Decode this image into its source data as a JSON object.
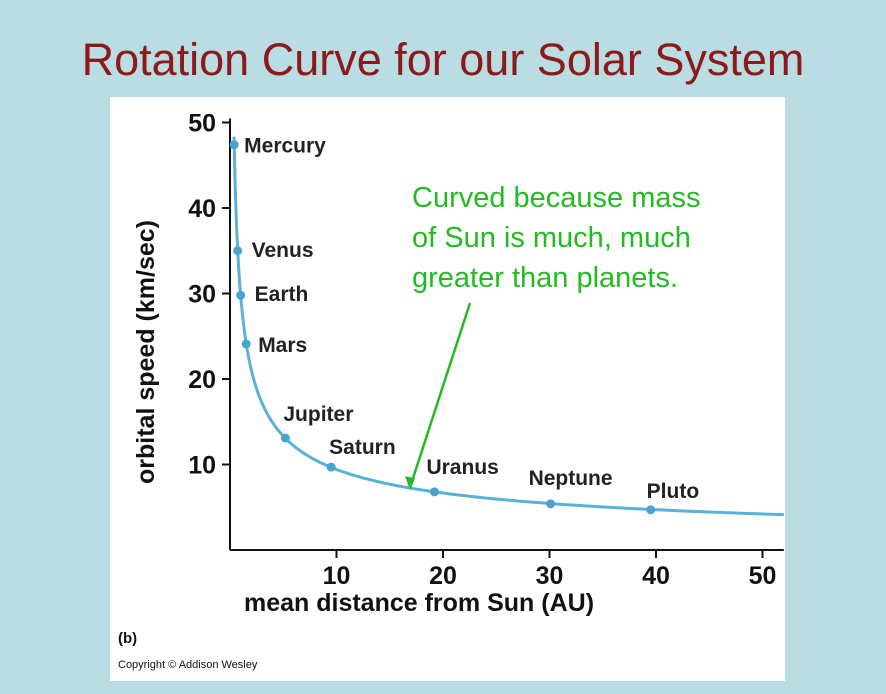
{
  "title": "Rotation Curve for our Solar System",
  "panel_label": "(b)",
  "copyright": "Copyright © Addison Wesley",
  "annotation": {
    "lines": [
      "Curved because mass",
      "of Sun is much, much",
      "greater than planets."
    ],
    "color": "#22bb22",
    "points_to_x": 17
  },
  "colors": {
    "background": "#b9dde2",
    "title": "#8b1a1a",
    "curve": "#5ab0d6",
    "points": "#4aa3cf"
  },
  "chart_data": {
    "type": "line",
    "title": "Rotation Curve for our Solar System",
    "xlabel": "mean distance from Sun (AU)",
    "ylabel": "orbital speed (km/sec)",
    "xlim": [
      0,
      52
    ],
    "ylim": [
      0,
      50
    ],
    "xticks": [
      10,
      20,
      30,
      40,
      50
    ],
    "yticks": [
      10,
      20,
      30,
      40,
      50
    ],
    "grid": false,
    "points": [
      {
        "name": "Mercury",
        "x": 0.39,
        "y": 47.4
      },
      {
        "name": "Venus",
        "x": 0.72,
        "y": 35.0
      },
      {
        "name": "Earth",
        "x": 1.0,
        "y": 29.8
      },
      {
        "name": "Mars",
        "x": 1.52,
        "y": 24.1
      },
      {
        "name": "Jupiter",
        "x": 5.2,
        "y": 13.1
      },
      {
        "name": "Saturn",
        "x": 9.5,
        "y": 9.7
      },
      {
        "name": "Uranus",
        "x": 19.2,
        "y": 6.8
      },
      {
        "name": "Neptune",
        "x": 30.1,
        "y": 5.4
      },
      {
        "name": "Pluto",
        "x": 39.5,
        "y": 4.7
      }
    ],
    "curve_constant": 29.8
  }
}
